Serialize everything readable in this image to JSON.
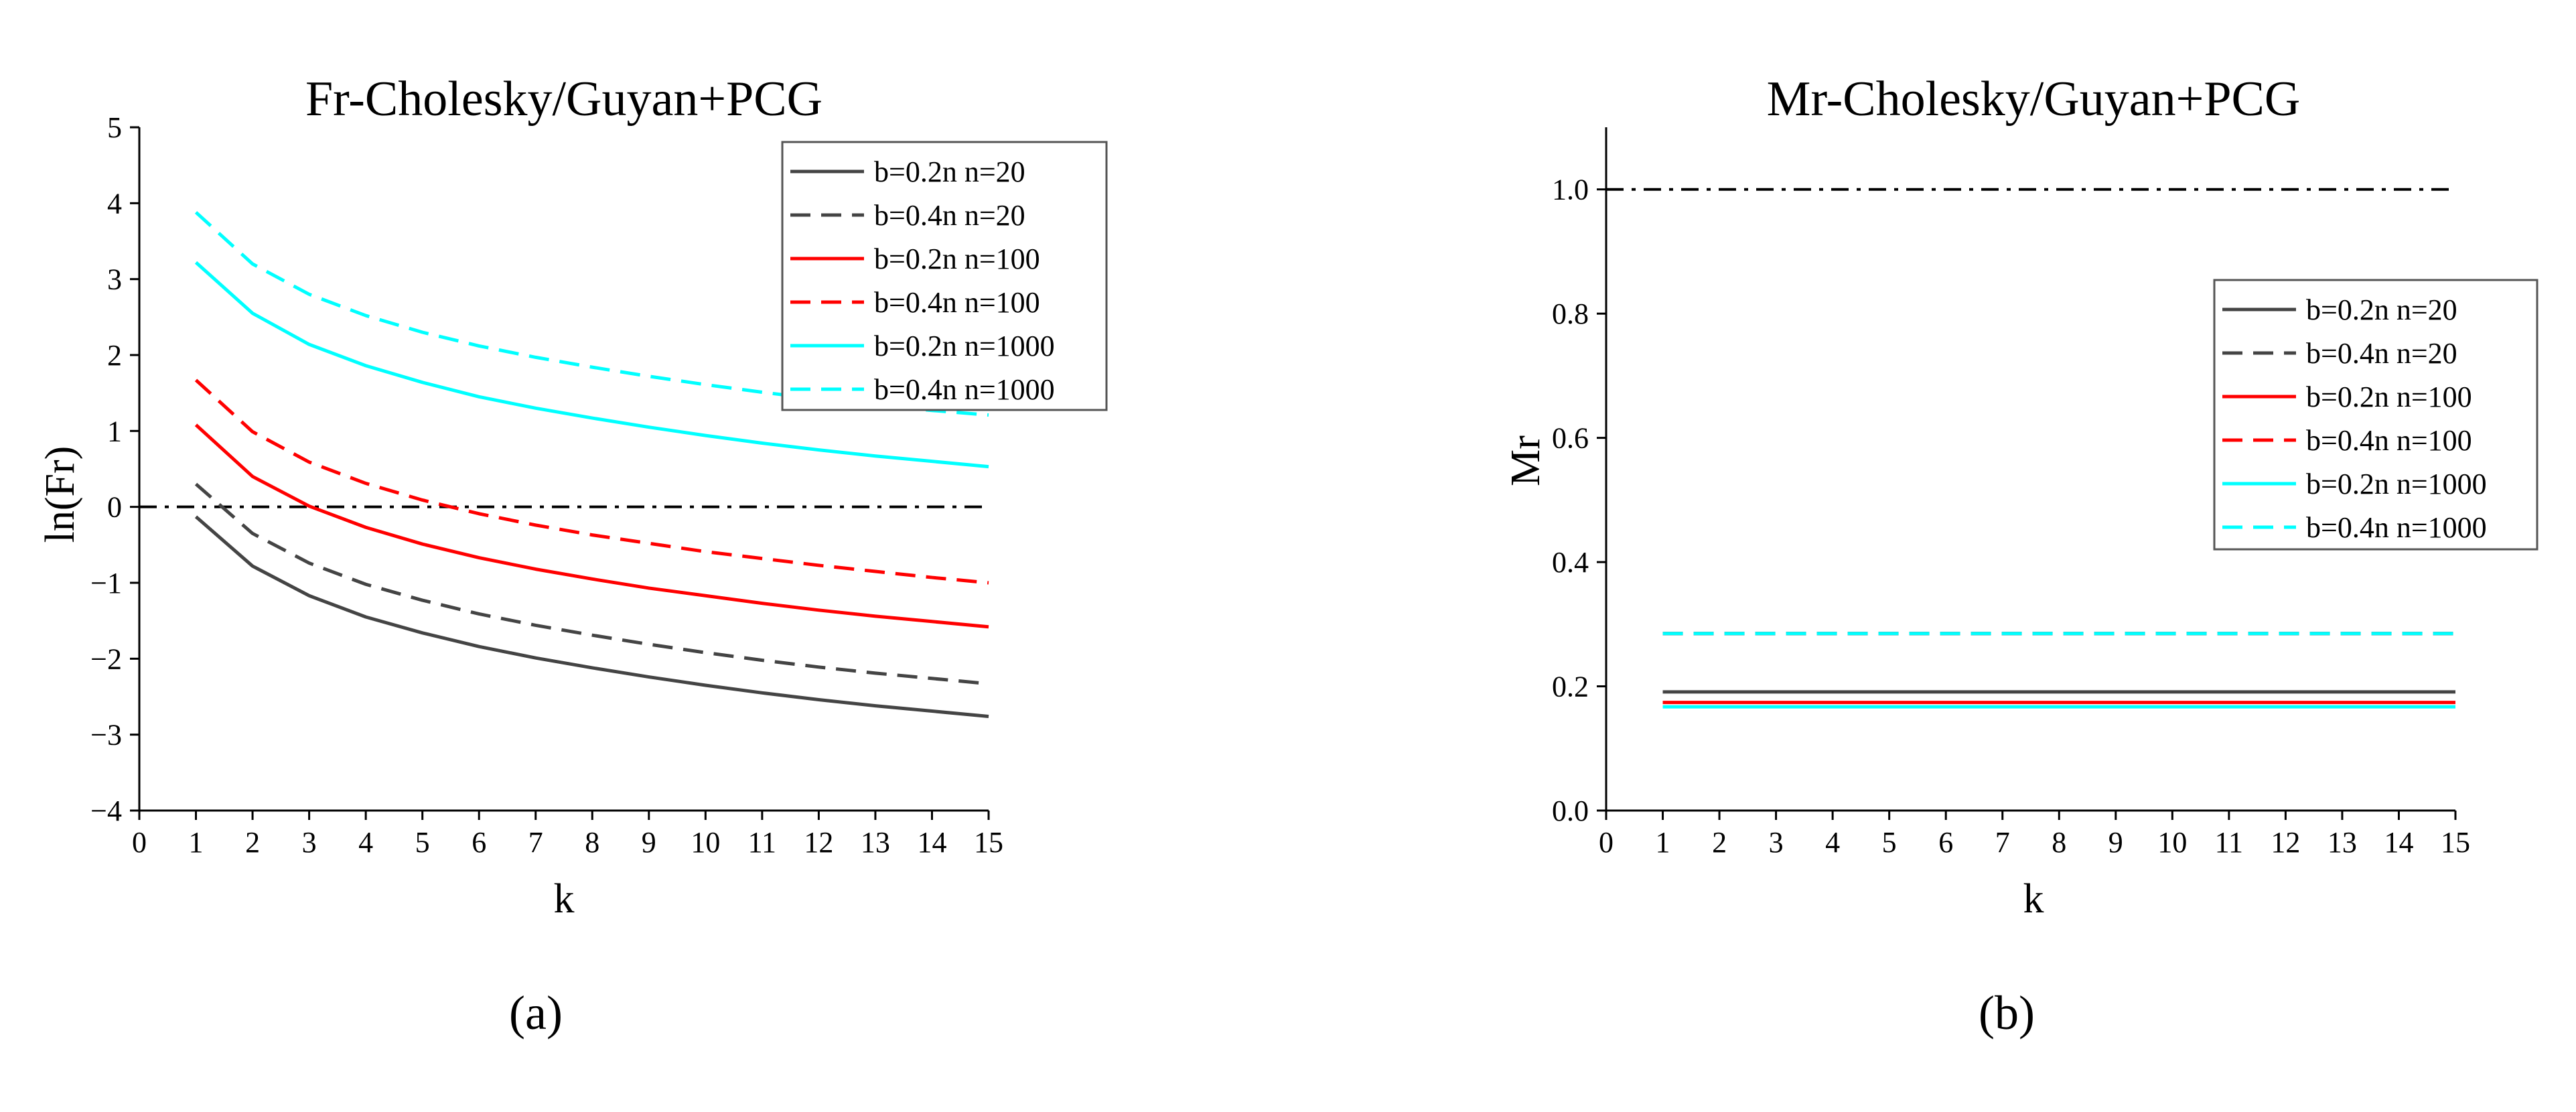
{
  "chart_data": [
    {
      "type": "line",
      "panel_label": "(a)",
      "title": "Fr-Cholesky/Guyan+PCG",
      "xlabel": "k",
      "ylabel": "ln(Fr)",
      "xlim": [
        0,
        15
      ],
      "ylim": [
        -4,
        5
      ],
      "xticks": [
        "0",
        "1",
        "2",
        "3",
        "4",
        "5",
        "6",
        "7",
        "8",
        "9",
        "10",
        "11",
        "12",
        "13",
        "14",
        "15"
      ],
      "yticks": [
        "−4",
        "−3",
        "−2",
        "−1",
        "0",
        "1",
        "2",
        "3",
        "4",
        "5"
      ],
      "legend_position": "top-right",
      "grid": false,
      "x": [
        1,
        2,
        3,
        4,
        5,
        6,
        7,
        8,
        9,
        10,
        11,
        12,
        13,
        14,
        15
      ],
      "reference_line": {
        "y": 0,
        "style": "dash-dot",
        "color": "#000000"
      },
      "series": [
        {
          "name": "b=0.2n  n=20",
          "color": "#444444",
          "dash": "solid",
          "values": [
            -0.13,
            -0.78,
            -1.17,
            -1.45,
            -1.66,
            -1.84,
            -1.99,
            -2.12,
            -2.24,
            -2.35,
            -2.45,
            -2.54,
            -2.62,
            -2.69,
            -2.76
          ]
        },
        {
          "name": "b=0.4n  n=20",
          "color": "#444444",
          "dash": "dashed",
          "values": [
            0.3,
            -0.35,
            -0.74,
            -1.02,
            -1.23,
            -1.41,
            -1.56,
            -1.69,
            -1.81,
            -1.92,
            -2.02,
            -2.11,
            -2.19,
            -2.26,
            -2.33
          ]
        },
        {
          "name": "b=0.2n  n=100",
          "color": "#ff0000",
          "dash": "solid",
          "values": [
            1.08,
            0.4,
            0.01,
            -0.27,
            -0.49,
            -0.67,
            -0.82,
            -0.95,
            -1.07,
            -1.17,
            -1.27,
            -1.36,
            -1.44,
            -1.51,
            -1.58
          ]
        },
        {
          "name": "b=0.4n  n=100",
          "color": "#ff0000",
          "dash": "dashed",
          "values": [
            1.67,
            0.99,
            0.59,
            0.31,
            0.09,
            -0.09,
            -0.24,
            -0.37,
            -0.48,
            -0.59,
            -0.68,
            -0.77,
            -0.85,
            -0.93,
            -1.0
          ]
        },
        {
          "name": "b=0.2n  n=1000",
          "color": "#00ffff",
          "dash": "solid",
          "values": [
            3.22,
            2.55,
            2.14,
            1.86,
            1.64,
            1.45,
            1.3,
            1.17,
            1.05,
            0.94,
            0.84,
            0.75,
            0.67,
            0.6,
            0.53
          ]
        },
        {
          "name": "b=0.4n  n=1000",
          "color": "#00ffff",
          "dash": "dashed",
          "values": [
            3.88,
            3.2,
            2.8,
            2.52,
            2.3,
            2.12,
            1.97,
            1.84,
            1.72,
            1.61,
            1.51,
            1.42,
            1.34,
            1.27,
            1.21
          ]
        }
      ]
    },
    {
      "type": "line",
      "panel_label": "(b)",
      "title": "Mr-Cholesky/Guyan+PCG",
      "xlabel": "k",
      "ylabel": "Mr",
      "xlim": [
        0,
        15
      ],
      "ylim": [
        0,
        1.1
      ],
      "xticks": [
        "0",
        "1",
        "2",
        "3",
        "4",
        "5",
        "6",
        "7",
        "8",
        "9",
        "10",
        "11",
        "12",
        "13",
        "14",
        "15"
      ],
      "yticks": [
        "0.0",
        "0.2",
        "0.4",
        "0.6",
        "0.8",
        "1.0"
      ],
      "legend_position": "center-right",
      "grid": false,
      "x": [
        1,
        2,
        3,
        4,
        5,
        6,
        7,
        8,
        9,
        10,
        11,
        12,
        13,
        14,
        15
      ],
      "reference_line": {
        "y": 1.0,
        "style": "dash-dot",
        "color": "#000000"
      },
      "series": [
        {
          "name": "b=0.2n  n=20",
          "color": "#444444",
          "dash": "solid",
          "values": [
            0.191,
            0.191,
            0.191,
            0.191,
            0.191,
            0.191,
            0.191,
            0.191,
            0.191,
            0.191,
            0.191,
            0.191,
            0.191,
            0.191,
            0.191
          ]
        },
        {
          "name": "b=0.4n  n=20",
          "color": "#444444",
          "dash": "dashed",
          "values": [
            0.285,
            0.285,
            0.285,
            0.285,
            0.285,
            0.285,
            0.285,
            0.285,
            0.285,
            0.285,
            0.285,
            0.285,
            0.285,
            0.285,
            0.285
          ]
        },
        {
          "name": "b=0.2n  n=100",
          "color": "#ff0000",
          "dash": "solid",
          "values": [
            0.174,
            0.174,
            0.174,
            0.174,
            0.174,
            0.174,
            0.174,
            0.174,
            0.174,
            0.174,
            0.174,
            0.174,
            0.174,
            0.174,
            0.174
          ]
        },
        {
          "name": "b=0.4n  n=100",
          "color": "#ff0000",
          "dash": "dashed",
          "values": [
            0.285,
            0.285,
            0.285,
            0.285,
            0.285,
            0.285,
            0.285,
            0.285,
            0.285,
            0.285,
            0.285,
            0.285,
            0.285,
            0.285,
            0.285
          ]
        },
        {
          "name": "b=0.2n  n=1000",
          "color": "#00ffff",
          "dash": "solid",
          "values": [
            0.167,
            0.167,
            0.167,
            0.167,
            0.167,
            0.167,
            0.167,
            0.167,
            0.167,
            0.167,
            0.167,
            0.167,
            0.167,
            0.167,
            0.167
          ]
        },
        {
          "name": "b=0.4n  n=1000",
          "color": "#00ffff",
          "dash": "dashed",
          "values": [
            0.285,
            0.285,
            0.285,
            0.285,
            0.285,
            0.285,
            0.285,
            0.285,
            0.285,
            0.285,
            0.285,
            0.285,
            0.285,
            0.285,
            0.285
          ]
        }
      ]
    }
  ]
}
